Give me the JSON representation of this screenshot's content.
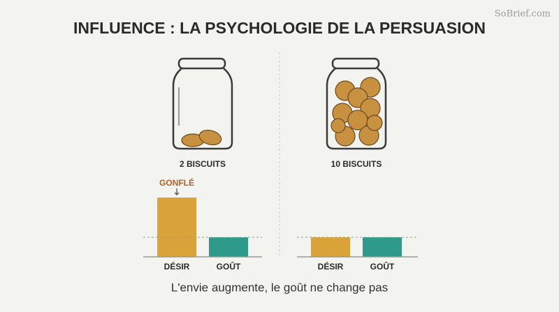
{
  "title": "INFLUENCE : LA PSYCHOLOGIE DE LA PERSUASION",
  "watermark": "SoBrief.com",
  "caption": "L'envie augmente, le goût ne change pas",
  "chart_data": [
    {
      "type": "bar",
      "label": "2 BISCUITS",
      "categories": [
        "DÉSIR",
        "GOÛT"
      ],
      "values": [
        85,
        28
      ],
      "colors": [
        "#d9a33a",
        "#2e9a8a"
      ],
      "ylim": [
        0,
        100
      ],
      "reference": 28,
      "annotation": "GONFLÉ"
    },
    {
      "type": "bar",
      "label": "10 BISCUITS",
      "categories": [
        "DÉSIR",
        "GOÛT"
      ],
      "values": [
        28,
        28
      ],
      "colors": [
        "#d9a33a",
        "#2e9a8a"
      ],
      "ylim": [
        0,
        100
      ],
      "reference": 28
    }
  ]
}
